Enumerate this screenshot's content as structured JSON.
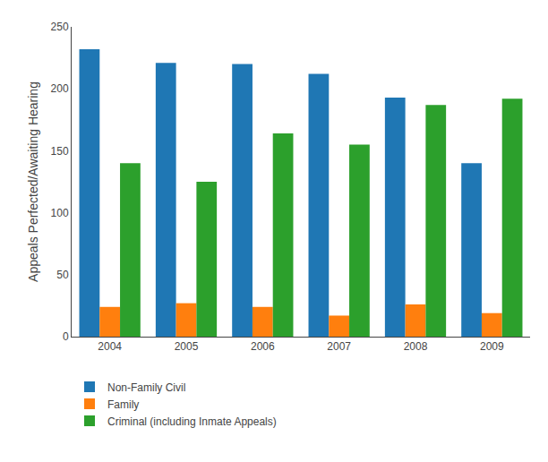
{
  "chart_data": {
    "type": "bar",
    "ylabel": "Appeals Perfected/Awaiting Hearing",
    "categories": [
      "2004",
      "2005",
      "2006",
      "2007",
      "2008",
      "2009"
    ],
    "series": [
      {
        "name": "Non-Family Civil",
        "values": [
          232,
          221,
          220,
          212,
          193,
          140
        ]
      },
      {
        "name": "Family",
        "values": [
          24,
          27,
          24,
          17,
          26,
          19
        ]
      },
      {
        "name": "Criminal (including Inmate Appeals)",
        "values": [
          140,
          125,
          164,
          155,
          187,
          192
        ]
      }
    ],
    "ylim": [
      0,
      250
    ],
    "yticks": [
      0,
      50,
      100,
      150,
      200,
      250
    ],
    "grid": false,
    "legend": "bottom"
  }
}
